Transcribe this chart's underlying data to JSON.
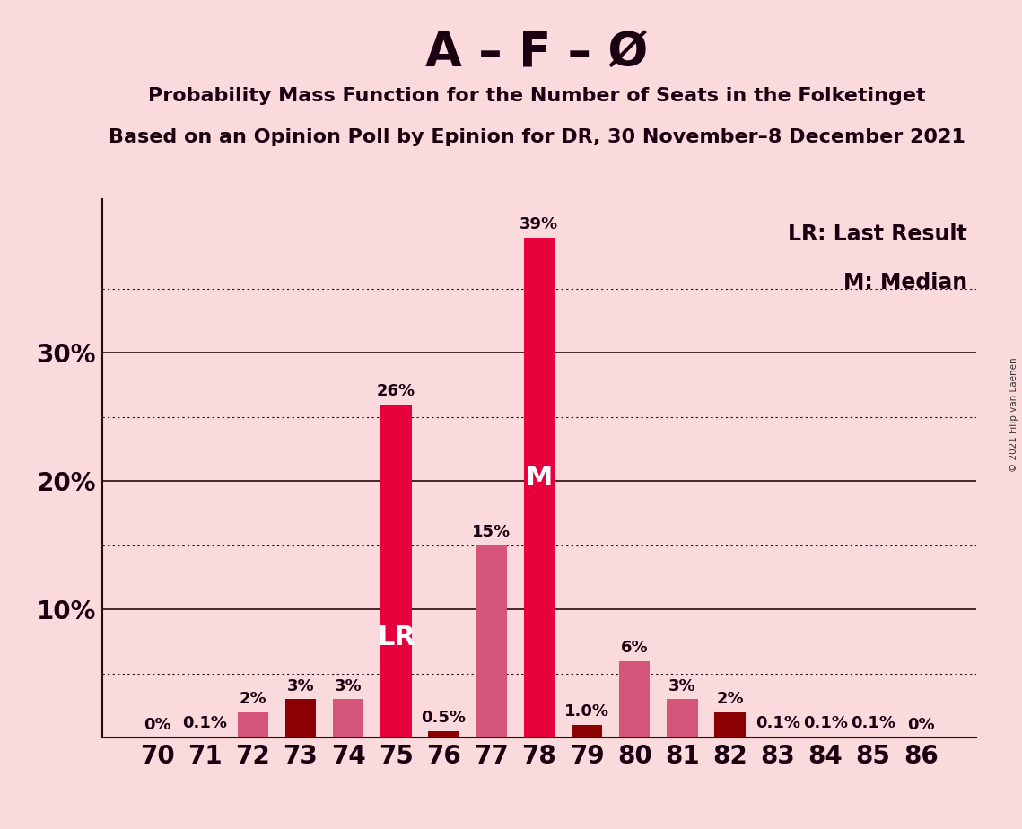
{
  "title": "A – F – Ø",
  "subtitle1": "Probability Mass Function for the Number of Seats in the Folketinget",
  "subtitle2": "Based on an Opinion Poll by Epinion for DR, 30 November–8 December 2021",
  "copyright": "© 2021 Filip van Laenen",
  "categories": [
    70,
    71,
    72,
    73,
    74,
    75,
    76,
    77,
    78,
    79,
    80,
    81,
    82,
    83,
    84,
    85,
    86
  ],
  "values": [
    0.0,
    0.1,
    2.0,
    3.0,
    3.0,
    26.0,
    0.5,
    15.0,
    39.0,
    1.0,
    6.0,
    3.0,
    2.0,
    0.1,
    0.1,
    0.1,
    0.0
  ],
  "bar_colors": [
    "#e8003d",
    "#e8003d",
    "#d4547a",
    "#8b0000",
    "#d4547a",
    "#e8003d",
    "#8b0000",
    "#d4547a",
    "#e8003d",
    "#8b0000",
    "#d4547a",
    "#d4547a",
    "#8b0000",
    "#e8003d",
    "#e8003d",
    "#e8003d",
    "#e8003d"
  ],
  "labels": [
    "0%",
    "0.1%",
    "2%",
    "3%",
    "3%",
    "26%",
    "0.5%",
    "15%",
    "39%",
    "1.0%",
    "6%",
    "3%",
    "2%",
    "0.1%",
    "0.1%",
    "0.1%",
    "0%"
  ],
  "lr_bar": 75,
  "median_bar": 78,
  "ylim": [
    0,
    42
  ],
  "solid_lines": [
    10,
    20,
    30
  ],
  "dotted_lines": [
    5,
    15,
    25,
    35
  ],
  "ytick_positions": [
    10,
    20,
    30
  ],
  "ytick_labels": [
    "10%",
    "20%",
    "30%"
  ],
  "background_color": "#fadadd",
  "spine_color": "#2a0a10",
  "grid_color": "#2a0a10",
  "text_color": "#1a0010",
  "bar_width": 0.65,
  "lr_label": "LR",
  "median_label": "M",
  "legend_text1": "LR: Last Result",
  "legend_text2": "M: Median",
  "title_fontsize": 38,
  "subtitle_fontsize": 16,
  "axis_fontsize": 20,
  "label_fontsize": 13,
  "bar_label_fontsize": 22,
  "legend_fontsize": 17
}
